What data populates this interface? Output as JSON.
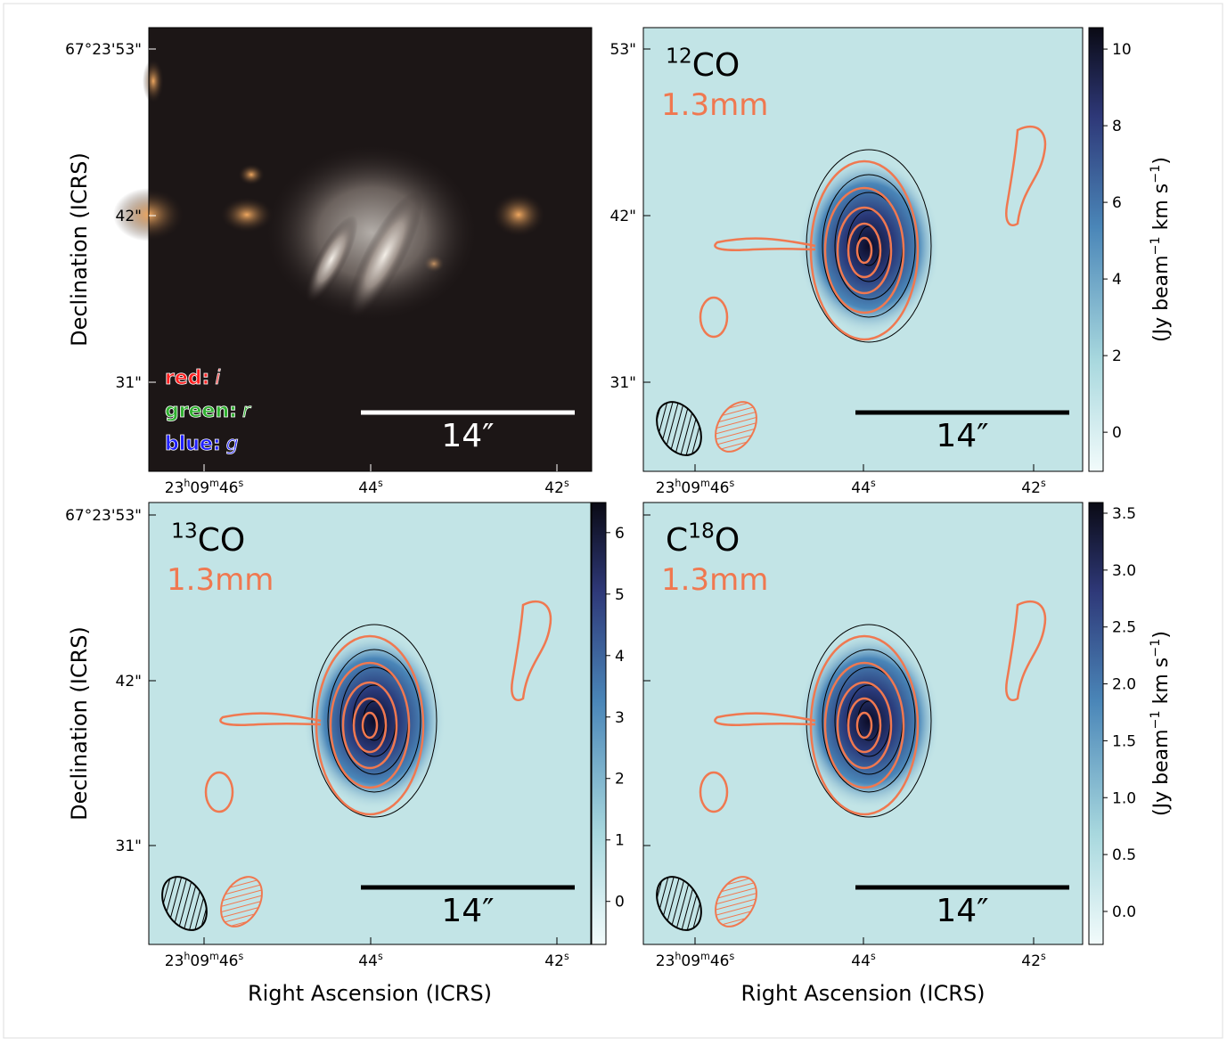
{
  "axis_titles": {
    "dec": "Declination (ICRS)",
    "ra": "Right Ascension (ICRS)"
  },
  "ra_ticks": [
    [
      {
        "text": "23"
      },
      {
        "text": "h",
        "sup": true
      },
      {
        "text": "09"
      },
      {
        "text": "m",
        "sup": true
      },
      {
        "text": "46"
      },
      {
        "text": "s",
        "sup": true
      }
    ],
    [
      {
        "text": "44"
      },
      {
        "text": "s",
        "sup": true
      }
    ],
    [
      {
        "text": "42"
      },
      {
        "text": "s",
        "sup": true
      }
    ]
  ],
  "panels": [
    {
      "dec_ticks": [
        "67°23'53\"",
        "42\"",
        "31\""
      ],
      "scale_bar": "14″",
      "legend": [
        {
          "name": "red:",
          "band": "i",
          "color": "#ff2020"
        },
        {
          "name": "green:",
          "band": "r",
          "color": "#30b030"
        },
        {
          "name": "blue:",
          "band": "g",
          "color": "#2020ff"
        }
      ]
    },
    {
      "line": [
        {
          "text": "12",
          "sup": true
        },
        {
          "text": "CO"
        }
      ],
      "wavelength": "1.3mm",
      "dec_ticks": [
        "53\"",
        "42\"",
        "31\""
      ],
      "scale_bar": "14″",
      "colorbar": {
        "lim": [
          -1.02,
          10.56
        ],
        "ticks": [
          0,
          2,
          4,
          6,
          8,
          10
        ],
        "label": [
          {
            "text": "(Jy beam"
          },
          {
            "text": "−1",
            "sup": true
          },
          {
            "text": " km s"
          },
          {
            "text": "−1",
            "sup": true
          },
          {
            "text": ")"
          }
        ]
      }
    },
    {
      "line": [
        {
          "text": "13",
          "sup": true
        },
        {
          "text": "CO"
        }
      ],
      "wavelength": "1.3mm",
      "dec_ticks": [
        "67°23'53\"",
        "42\"",
        "31\""
      ],
      "scale_bar": "14″",
      "colorbar": {
        "lim": [
          -0.7,
          6.49
        ],
        "ticks": [
          0,
          1,
          2,
          3,
          4,
          5,
          6
        ]
      }
    },
    {
      "line": [
        {
          "text": "C"
        },
        {
          "text": "18",
          "sup": true
        },
        {
          "text": "O"
        }
      ],
      "wavelength": "1.3mm",
      "scale_bar": "14″",
      "colorbar": {
        "lim": [
          -0.29,
          3.594
        ],
        "ticks": [
          {
            "value": 0,
            "label": "0.0"
          },
          0.5,
          {
            "value": 1,
            "label": "1.0"
          },
          1.5,
          {
            "value": 2,
            "label": "2.0"
          },
          2.5,
          {
            "value": 3,
            "label": "3.0"
          },
          3.5
        ],
        "label": [
          {
            "text": "(Jy beam"
          },
          {
            "text": "−1",
            "sup": true
          },
          {
            "text": " km s"
          },
          {
            "text": "−1",
            "sup": true
          },
          {
            "text": ")"
          }
        ]
      }
    }
  ]
}
